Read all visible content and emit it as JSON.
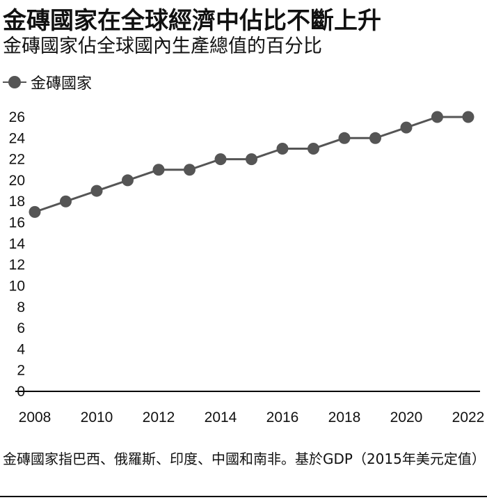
{
  "title": "金磚國家在全球經濟中佔比不斷上升",
  "subtitle": "金磚國家佔全球國內生產總值的百分比",
  "legend_label": "金磚國家",
  "footnote": "金磚國家指巴西、俄羅斯、印度、中國和南非。基於GDP（2015年美元定值）",
  "colors": {
    "line": "#555555",
    "marker": "#555555",
    "axis": "#000000"
  },
  "chart_data": {
    "type": "line",
    "x": [
      2008,
      2009,
      2010,
      2011,
      2012,
      2013,
      2014,
      2015,
      2016,
      2017,
      2018,
      2019,
      2020,
      2021,
      2022
    ],
    "series": [
      {
        "name": "金磚國家",
        "values": [
          17,
          18,
          19,
          20,
          21,
          21,
          22,
          22,
          23,
          23,
          24,
          24,
          25,
          26,
          26
        ]
      }
    ],
    "x_ticks": [
      "2008",
      "2010",
      "2012",
      "2014",
      "2016",
      "2018",
      "2020",
      "2022"
    ],
    "y_ticks": [
      "0",
      "2",
      "4",
      "6",
      "8",
      "10",
      "12",
      "14",
      "16",
      "18",
      "20",
      "22",
      "24",
      "26"
    ],
    "ylim": [
      0,
      26
    ],
    "xlim": [
      2008,
      2022
    ],
    "grid": false,
    "legend_position": "top-left"
  }
}
